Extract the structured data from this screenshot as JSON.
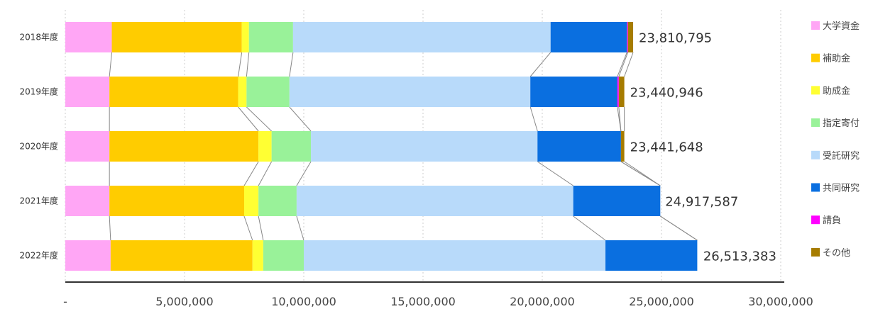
{
  "chart_data": {
    "type": "bar",
    "orientation": "horizontal",
    "stacked": true,
    "title": "",
    "xlabel": "",
    "ylabel": "",
    "categories": [
      "2018年度",
      "2019年度",
      "2020年度",
      "2021年度",
      "2022年度"
    ],
    "xlim": [
      0,
      30000000
    ],
    "x_ticks": [
      0,
      5000000,
      10000000,
      15000000,
      20000000,
      25000000,
      30000000
    ],
    "x_tick_labels": [
      "-",
      "5,000,000",
      "10,000,000",
      "15,000,000",
      "20,000,000",
      "25,000,000",
      "30,000,000"
    ],
    "grid": "vertical dashed",
    "legend_position": "right",
    "series": [
      {
        "name": "大学資金",
        "color": "#FFA6F5",
        "values": [
          1950000,
          1850000,
          1850000,
          1850000,
          1900000
        ]
      },
      {
        "name": "補助金",
        "color": "#FFCC00",
        "values": [
          5450000,
          5400000,
          6250000,
          5650000,
          5950000
        ]
      },
      {
        "name": "助成金",
        "color": "#FFFF33",
        "values": [
          300000,
          350000,
          550000,
          600000,
          450000
        ]
      },
      {
        "name": "指定寄付",
        "color": "#99F299",
        "values": [
          1850000,
          1800000,
          1650000,
          1600000,
          1700000
        ]
      },
      {
        "name": "受託研究",
        "color": "#B8DAFA",
        "values": [
          10800000,
          10100000,
          9500000,
          11600000,
          12650000
        ]
      },
      {
        "name": "共同研究",
        "color": "#0A6FE0",
        "values": [
          3200000,
          3650000,
          3500000,
          3650000,
          3850000
        ]
      },
      {
        "name": "請負",
        "color": "#FF00FF",
        "values": [
          40000,
          60000,
          0,
          0,
          0
        ]
      },
      {
        "name": "その他",
        "color": "#A67C00",
        "values": [
          220795,
          230946,
          141648,
          0,
          0
        ]
      }
    ],
    "totals": [
      23810795,
      23440946,
      23441648,
      24917587,
      26513383
    ],
    "total_labels": [
      "23,810,795",
      "23,440,946",
      "23,441,648",
      "24,917,587",
      "26,513,383"
    ]
  }
}
